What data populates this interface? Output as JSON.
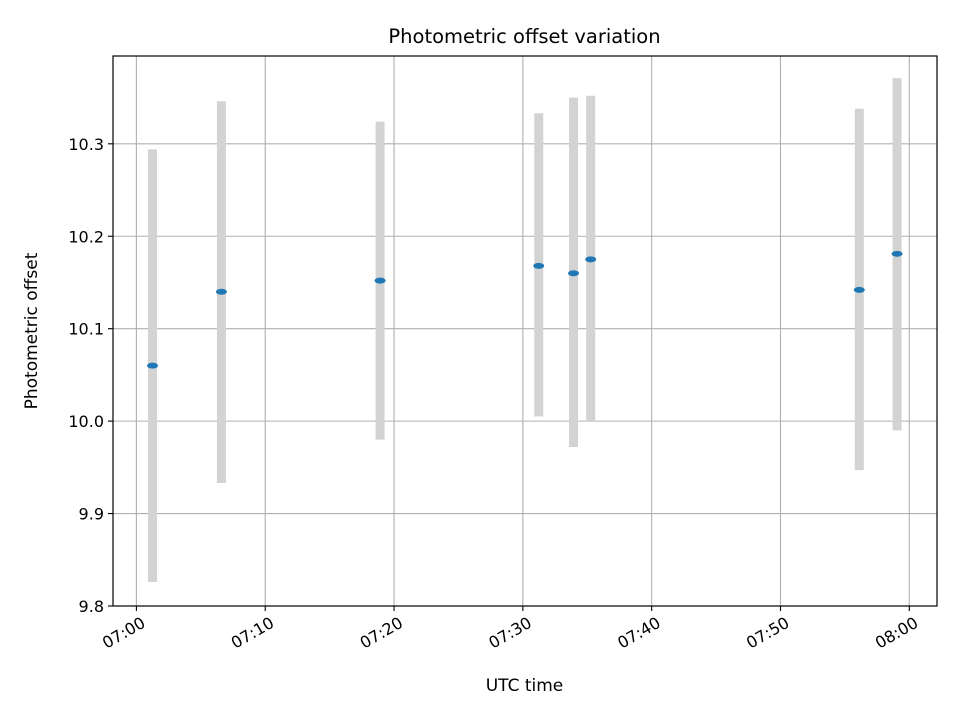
{
  "chart_data": {
    "type": "scatter",
    "title": "Photometric offset variation",
    "xlabel": "UTC time",
    "ylabel": "Photometric offset",
    "grid": true,
    "xlim": [
      "06:58:11",
      "08:02:09"
    ],
    "ylim": [
      9.8,
      10.395
    ],
    "x_ticks": [
      "07:00",
      "07:10",
      "07:20",
      "07:30",
      "07:40",
      "07:50",
      "08:00"
    ],
    "y_ticks": [
      "9.8",
      "9.9",
      "10.0",
      "10.1",
      "10.2",
      "10.3"
    ],
    "colors": {
      "point": "#1f77b4",
      "errorbar": "#d3d3d3",
      "grid": "#b0b0b0",
      "axes": "#000000"
    },
    "series": [
      {
        "x": [
          "07:01:15",
          "07:06:36",
          "07:18:55",
          "07:31:14",
          "07:33:56",
          "07:35:16",
          "07:56:07",
          "07:59:03"
        ],
        "y": [
          10.06,
          10.14,
          10.152,
          10.168,
          10.16,
          10.175,
          10.142,
          10.181
        ],
        "yerr_low": [
          9.826,
          9.933,
          9.98,
          10.005,
          9.972,
          10.0,
          9.947,
          9.99
        ],
        "yerr_high": [
          10.294,
          10.346,
          10.324,
          10.333,
          10.35,
          10.352,
          10.338,
          10.371
        ]
      }
    ]
  }
}
